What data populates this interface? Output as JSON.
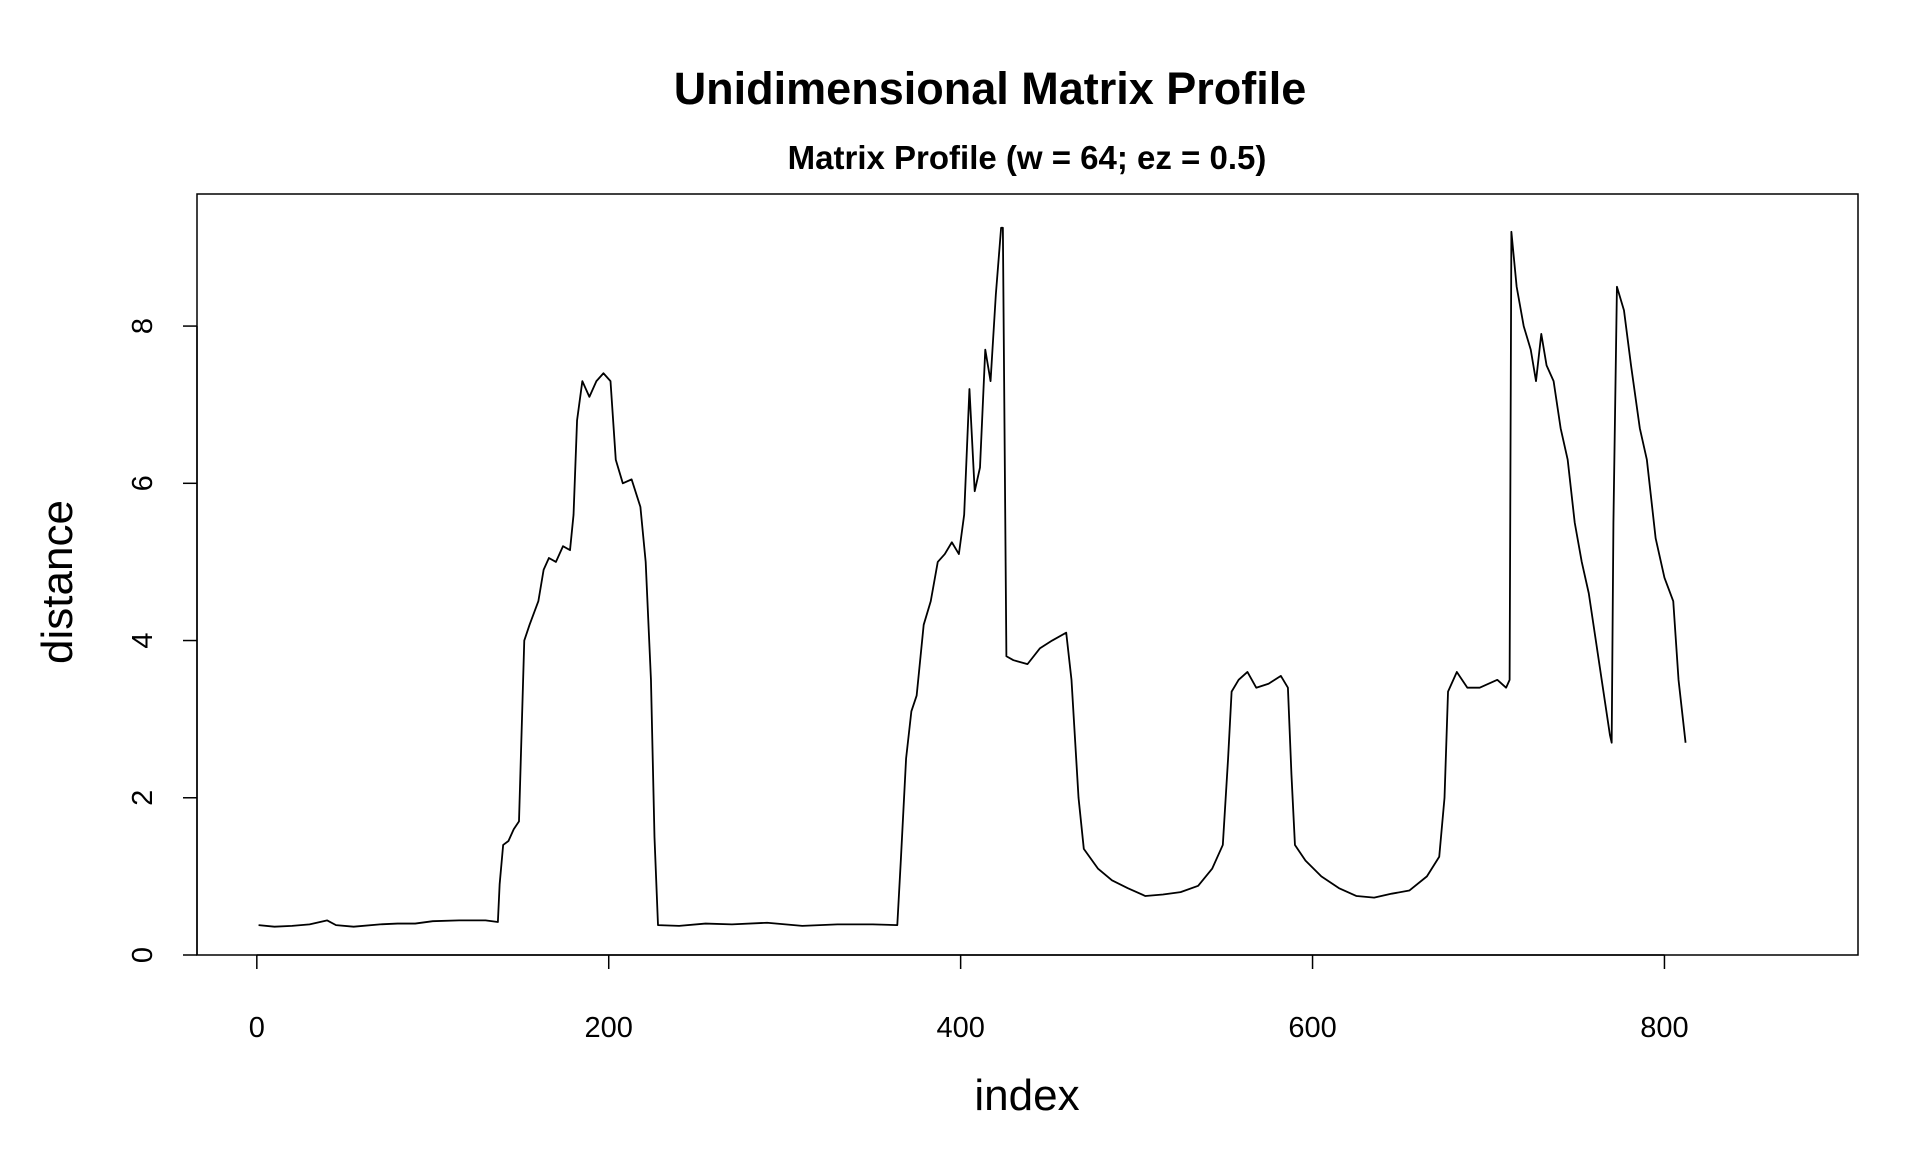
{
  "chart_data": {
    "type": "line",
    "title": "Unidimensional Matrix Profile",
    "subtitle": "Matrix Profile (w = 64; ez = 0.5)",
    "x_label": "index",
    "y_label": "distance",
    "xlim": [
      -34,
      910
    ],
    "ylim": [
      0,
      9.68
    ],
    "xticks": [
      0,
      200,
      400,
      600,
      800
    ],
    "yticks": [
      0,
      2,
      4,
      6,
      8
    ],
    "x": [
      1,
      10,
      20,
      30,
      40,
      45,
      55,
      70,
      80,
      90,
      100,
      115,
      130,
      137,
      138,
      140,
      143,
      146,
      149,
      152,
      155,
      160,
      163,
      166,
      170,
      174,
      178,
      180,
      182,
      185,
      189,
      193,
      197,
      201,
      204,
      208,
      213,
      218,
      221,
      224,
      226,
      228,
      240,
      255,
      270,
      290,
      310,
      330,
      350,
      364,
      366,
      369,
      372,
      375,
      379,
      383,
      387,
      391,
      395,
      399,
      402,
      405,
      408,
      411,
      414,
      417,
      420,
      423,
      424,
      426,
      430,
      438,
      445,
      452,
      460,
      463,
      467,
      470,
      478,
      486,
      495,
      505,
      515,
      525,
      535,
      543,
      549,
      552,
      554,
      558,
      563,
      568,
      575,
      582,
      586,
      588,
      590,
      596,
      605,
      615,
      625,
      635,
      645,
      655,
      665,
      672,
      675,
      677,
      682,
      688,
      695,
      705,
      710,
      712,
      713,
      716,
      720,
      724,
      727,
      730,
      733,
      737,
      741,
      745,
      749,
      753,
      757,
      761,
      765,
      769,
      770,
      771,
      773,
      777,
      781,
      786,
      790,
      795,
      800,
      805,
      808,
      812
    ],
    "series": [
      {
        "name": "distance",
        "color": "#000000",
        "values": [
          0.38,
          0.36,
          0.37,
          0.39,
          0.44,
          0.38,
          0.36,
          0.39,
          0.4,
          0.4,
          0.43,
          0.44,
          0.44,
          0.42,
          0.9,
          1.4,
          1.45,
          1.6,
          1.7,
          4.0,
          4.2,
          4.5,
          4.9,
          5.05,
          5.0,
          5.2,
          5.15,
          5.6,
          6.8,
          7.3,
          7.1,
          7.3,
          7.4,
          7.3,
          6.3,
          6.0,
          6.05,
          5.7,
          5.0,
          3.5,
          1.5,
          0.38,
          0.37,
          0.4,
          0.39,
          0.41,
          0.37,
          0.39,
          0.39,
          0.38,
          1.2,
          2.5,
          3.1,
          3.3,
          4.2,
          4.5,
          5.0,
          5.1,
          5.25,
          5.1,
          5.6,
          7.2,
          5.9,
          6.2,
          7.7,
          7.3,
          8.4,
          9.25,
          9.25,
          3.8,
          3.75,
          3.7,
          3.9,
          4.0,
          4.1,
          3.5,
          2.0,
          1.35,
          1.1,
          0.95,
          0.85,
          0.75,
          0.77,
          0.8,
          0.88,
          1.1,
          1.4,
          2.5,
          3.35,
          3.5,
          3.6,
          3.4,
          3.45,
          3.55,
          3.4,
          2.3,
          1.4,
          1.2,
          1.0,
          0.85,
          0.75,
          0.73,
          0.78,
          0.82,
          1.0,
          1.25,
          2.0,
          3.35,
          3.6,
          3.4,
          3.4,
          3.5,
          3.4,
          3.5,
          9.2,
          8.5,
          8.0,
          7.7,
          7.3,
          7.9,
          7.5,
          7.3,
          6.7,
          6.3,
          5.5,
          5.0,
          4.6,
          4.0,
          3.4,
          2.8,
          2.7,
          5.5,
          8.5,
          8.2,
          7.5,
          6.7,
          6.3,
          5.3,
          4.8,
          4.5,
          3.5,
          2.7
        ]
      }
    ]
  }
}
